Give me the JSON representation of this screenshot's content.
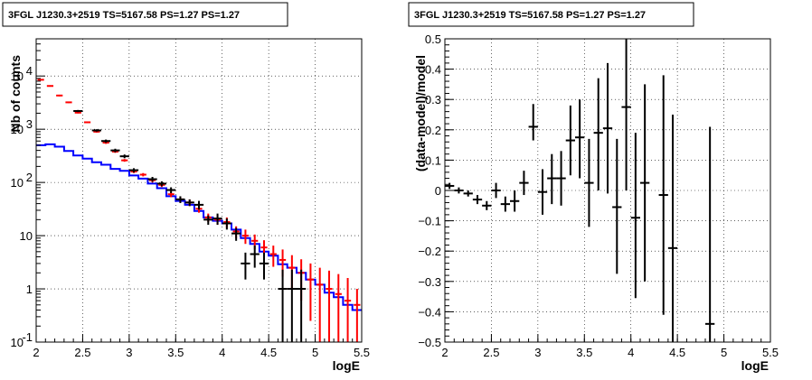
{
  "chart_data": [
    {
      "type": "step-line-with-errorbars",
      "title": "3FGL J1230.3+2519 TS=5167.58 PS=1.27 PS=1.27",
      "xlabel": "logE",
      "ylabel": "Nb of counts",
      "xlim": [
        2,
        5.5
      ],
      "ylim": [
        0.1,
        50000
      ],
      "yscale": "log",
      "xticks": [
        "2",
        "2.5",
        "3",
        "3.5",
        "4",
        "4.5",
        "5",
        "5.5"
      ],
      "yticks": [
        "10^-1",
        "1",
        "10",
        "10^2",
        "10^3",
        "10^4"
      ],
      "grid": true,
      "bin_width": 0.1,
      "series": [
        {
          "color": "#ff0000",
          "style": "errorbars",
          "points": [
            {
              "x": 2.05,
              "y": 8500,
              "lo": 8200,
              "hi": 8800
            },
            {
              "x": 2.15,
              "y": 6500,
              "lo": 6300,
              "hi": 6700
            },
            {
              "x": 2.25,
              "y": 4300,
              "lo": 4150,
              "hi": 4450
            },
            {
              "x": 2.35,
              "y": 3200,
              "lo": 3100,
              "hi": 3300
            },
            {
              "x": 2.45,
              "y": 2050,
              "lo": 1980,
              "hi": 2120
            },
            {
              "x": 2.55,
              "y": 1350,
              "lo": 1300,
              "hi": 1400
            },
            {
              "x": 2.65,
              "y": 900,
              "lo": 860,
              "hi": 940
            },
            {
              "x": 2.75,
              "y": 560,
              "lo": 530,
              "hi": 590
            },
            {
              "x": 2.85,
              "y": 380,
              "lo": 360,
              "hi": 400
            },
            {
              "x": 2.95,
              "y": 260,
              "lo": 245,
              "hi": 275
            },
            {
              "x": 3.05,
              "y": 160,
              "lo": 150,
              "hi": 170
            },
            {
              "x": 3.15,
              "y": 140,
              "lo": 130,
              "hi": 150
            },
            {
              "x": 3.25,
              "y": 110,
              "lo": 100,
              "hi": 120
            },
            {
              "x": 3.35,
              "y": 90,
              "lo": 82,
              "hi": 98
            },
            {
              "x": 3.45,
              "y": 60,
              "lo": 53,
              "hi": 67
            },
            {
              "x": 3.55,
              "y": 48,
              "lo": 42,
              "hi": 54
            },
            {
              "x": 3.65,
              "y": 42,
              "lo": 36,
              "hi": 48
            },
            {
              "x": 3.75,
              "y": 32,
              "lo": 27,
              "hi": 37
            },
            {
              "x": 3.85,
              "y": 22,
              "lo": 18,
              "hi": 26
            },
            {
              "x": 3.95,
              "y": 20,
              "lo": 16,
              "hi": 24
            },
            {
              "x": 4.05,
              "y": 18,
              "lo": 14,
              "hi": 22
            },
            {
              "x": 4.15,
              "y": 12,
              "lo": 9,
              "hi": 15
            },
            {
              "x": 4.25,
              "y": 10,
              "lo": 7,
              "hi": 13
            },
            {
              "x": 4.35,
              "y": 8,
              "lo": 5.5,
              "hi": 10.5
            },
            {
              "x": 4.45,
              "y": 6,
              "lo": 3.8,
              "hi": 8.2
            },
            {
              "x": 4.55,
              "y": 4.5,
              "lo": 2.6,
              "hi": 6.5
            },
            {
              "x": 4.65,
              "y": 3.5,
              "lo": 1.7,
              "hi": 5.5
            },
            {
              "x": 4.75,
              "y": 2.5,
              "lo": 1.0,
              "hi": 4.3
            },
            {
              "x": 4.85,
              "y": 2,
              "lo": 0.6,
              "hi": 3.6
            },
            {
              "x": 4.95,
              "y": 1.5,
              "lo": 0.25,
              "hi": 3.0
            },
            {
              "x": 5.05,
              "y": 1.2,
              "lo": 0.1,
              "hi": 2.5
            },
            {
              "x": 5.15,
              "y": 1,
              "lo": 0.1,
              "hi": 2.2
            },
            {
              "x": 5.25,
              "y": 0.8,
              "lo": 0.1,
              "hi": 1.9
            },
            {
              "x": 5.35,
              "y": 0.6,
              "lo": 0.1,
              "hi": 1.6
            },
            {
              "x": 5.45,
              "y": 0.5,
              "lo": 0.1,
              "hi": 1.0
            }
          ]
        },
        {
          "color": "#000000",
          "style": "errorbars",
          "points": [
            {
              "x": 2.45,
              "y": 2200,
              "lo": 2100,
              "hi": 2300
            },
            {
              "x": 2.65,
              "y": 950,
              "lo": 900,
              "hi": 1000
            },
            {
              "x": 2.75,
              "y": 600,
              "lo": 560,
              "hi": 640
            },
            {
              "x": 2.85,
              "y": 400,
              "lo": 370,
              "hi": 430
            },
            {
              "x": 2.95,
              "y": 310,
              "lo": 285,
              "hi": 335
            },
            {
              "x": 3.05,
              "y": 170,
              "lo": 155,
              "hi": 185
            },
            {
              "x": 3.25,
              "y": 115,
              "lo": 103,
              "hi": 127
            },
            {
              "x": 3.35,
              "y": 95,
              "lo": 85,
              "hi": 105
            },
            {
              "x": 3.45,
              "y": 72,
              "lo": 63,
              "hi": 81
            },
            {
              "x": 3.55,
              "y": 48,
              "lo": 41,
              "hi": 55
            },
            {
              "x": 3.65,
              "y": 42,
              "lo": 36,
              "hi": 48
            },
            {
              "x": 3.75,
              "y": 38,
              "lo": 31,
              "hi": 45
            },
            {
              "x": 3.85,
              "y": 20,
              "lo": 16,
              "hi": 24
            },
            {
              "x": 3.95,
              "y": 21,
              "lo": 16,
              "hi": 26
            },
            {
              "x": 4.05,
              "y": 17,
              "lo": 13,
              "hi": 21
            },
            {
              "x": 4.15,
              "y": 11,
              "lo": 8,
              "hi": 14
            },
            {
              "x": 4.25,
              "y": 3,
              "lo": 1.5,
              "hi": 4.8
            },
            {
              "x": 4.35,
              "y": 4.5,
              "lo": 2.5,
              "hi": 6.5
            },
            {
              "x": 4.45,
              "y": 3,
              "lo": 1.5,
              "hi": 4.8
            },
            {
              "x": 4.65,
              "y": 1,
              "lo": 0.1,
              "hi": 2.3
            },
            {
              "x": 4.75,
              "y": 1,
              "lo": 0.1,
              "hi": 2.3
            },
            {
              "x": 4.85,
              "y": 1,
              "lo": 0.1,
              "hi": 2.3
            }
          ]
        },
        {
          "color": "#0000ff",
          "style": "step",
          "bins": [
            {
              "x": 2.05,
              "y": 500
            },
            {
              "x": 2.15,
              "y": 520
            },
            {
              "x": 2.25,
              "y": 470
            },
            {
              "x": 2.35,
              "y": 390
            },
            {
              "x": 2.45,
              "y": 320
            },
            {
              "x": 2.55,
              "y": 280
            },
            {
              "x": 2.65,
              "y": 240
            },
            {
              "x": 2.75,
              "y": 215
            },
            {
              "x": 2.85,
              "y": 180
            },
            {
              "x": 2.95,
              "y": 165
            },
            {
              "x": 3.05,
              "y": 135
            },
            {
              "x": 3.15,
              "y": 118
            },
            {
              "x": 3.25,
              "y": 95
            },
            {
              "x": 3.35,
              "y": 78
            },
            {
              "x": 3.45,
              "y": 55
            },
            {
              "x": 3.55,
              "y": 45
            },
            {
              "x": 3.65,
              "y": 38
            },
            {
              "x": 3.75,
              "y": 29
            },
            {
              "x": 3.85,
              "y": 22
            },
            {
              "x": 3.95,
              "y": 19
            },
            {
              "x": 4.05,
              "y": 17
            },
            {
              "x": 4.15,
              "y": 13
            },
            {
              "x": 4.25,
              "y": 9
            },
            {
              "x": 4.35,
              "y": 7
            },
            {
              "x": 4.45,
              "y": 5
            },
            {
              "x": 4.55,
              "y": 4.2
            },
            {
              "x": 4.65,
              "y": 2.9
            },
            {
              "x": 4.75,
              "y": 2.5
            },
            {
              "x": 4.85,
              "y": 2
            },
            {
              "x": 4.95,
              "y": 1.5
            },
            {
              "x": 5.05,
              "y": 1.2
            },
            {
              "x": 5.15,
              "y": 0.85
            },
            {
              "x": 5.25,
              "y": 0.7
            },
            {
              "x": 5.35,
              "y": 0.5
            },
            {
              "x": 5.45,
              "y": 0.4
            }
          ]
        }
      ]
    },
    {
      "type": "scatter-with-errorbars",
      "title": "3FGL J1230.3+2519 TS=5167.58 PS=1.27 PS=1.27",
      "xlabel": "logE",
      "ylabel": "(data-model)/model",
      "xlim": [
        2,
        5.5
      ],
      "ylim": [
        -0.5,
        0.5
      ],
      "xticks": [
        "2",
        "2.5",
        "3",
        "3.5",
        "4",
        "4.5",
        "5",
        "5.5"
      ],
      "yticks": [
        "−0.5",
        "−0.4",
        "−0.3",
        "−0.2",
        "−0.1",
        "0",
        "0.1",
        "0.2",
        "0.3",
        "0.4",
        "0.5"
      ],
      "grid": true,
      "bin_width": 0.1,
      "series": [
        {
          "color": "#000000",
          "points": [
            {
              "x": 2.05,
              "y": 0.015,
              "lo": 0.005,
              "hi": 0.025
            },
            {
              "x": 2.15,
              "y": 0.0,
              "lo": -0.01,
              "hi": 0.01
            },
            {
              "x": 2.25,
              "y": -0.01,
              "lo": -0.02,
              "hi": 0.0
            },
            {
              "x": 2.35,
              "y": -0.03,
              "lo": -0.045,
              "hi": -0.015
            },
            {
              "x": 2.45,
              "y": -0.05,
              "lo": -0.065,
              "hi": -0.035
            },
            {
              "x": 2.55,
              "y": 0.0,
              "lo": -0.025,
              "hi": 0.025
            },
            {
              "x": 2.65,
              "y": -0.045,
              "lo": -0.07,
              "hi": -0.02
            },
            {
              "x": 2.75,
              "y": -0.035,
              "lo": -0.07,
              "hi": 0.0
            },
            {
              "x": 2.85,
              "y": 0.025,
              "lo": -0.015,
              "hi": 0.065
            },
            {
              "x": 2.95,
              "y": 0.21,
              "lo": 0.165,
              "hi": 0.285
            },
            {
              "x": 3.05,
              "y": -0.005,
              "lo": -0.08,
              "hi": 0.07
            },
            {
              "x": 3.15,
              "y": 0.04,
              "lo": -0.045,
              "hi": 0.12
            },
            {
              "x": 3.25,
              "y": 0.04,
              "lo": -0.05,
              "hi": 0.13
            },
            {
              "x": 3.35,
              "y": 0.165,
              "lo": 0.05,
              "hi": 0.28
            },
            {
              "x": 3.45,
              "y": 0.175,
              "lo": 0.04,
              "hi": 0.3
            },
            {
              "x": 3.55,
              "y": 0.025,
              "lo": -0.12,
              "hi": 0.17
            },
            {
              "x": 3.65,
              "y": 0.19,
              "lo": 0.0,
              "hi": 0.37
            },
            {
              "x": 3.75,
              "y": 0.205,
              "lo": -0.01,
              "hi": 0.42
            },
            {
              "x": 3.85,
              "y": -0.055,
              "lo": -0.275,
              "hi": 0.17
            },
            {
              "x": 3.95,
              "y": 0.275,
              "lo": 0.0,
              "hi": 0.5
            },
            {
              "x": 4.05,
              "y": -0.09,
              "lo": -0.355,
              "hi": 0.19
            },
            {
              "x": 4.15,
              "y": 0.025,
              "lo": -0.3,
              "hi": 0.35
            },
            {
              "x": 4.35,
              "y": -0.015,
              "lo": -0.41,
              "hi": 0.38
            },
            {
              "x": 4.45,
              "y": -0.19,
              "lo": -0.5,
              "hi": 0.25
            },
            {
              "x": 4.85,
              "y": -0.44,
              "lo": -0.5,
              "hi": 0.21
            }
          ]
        }
      ]
    }
  ]
}
